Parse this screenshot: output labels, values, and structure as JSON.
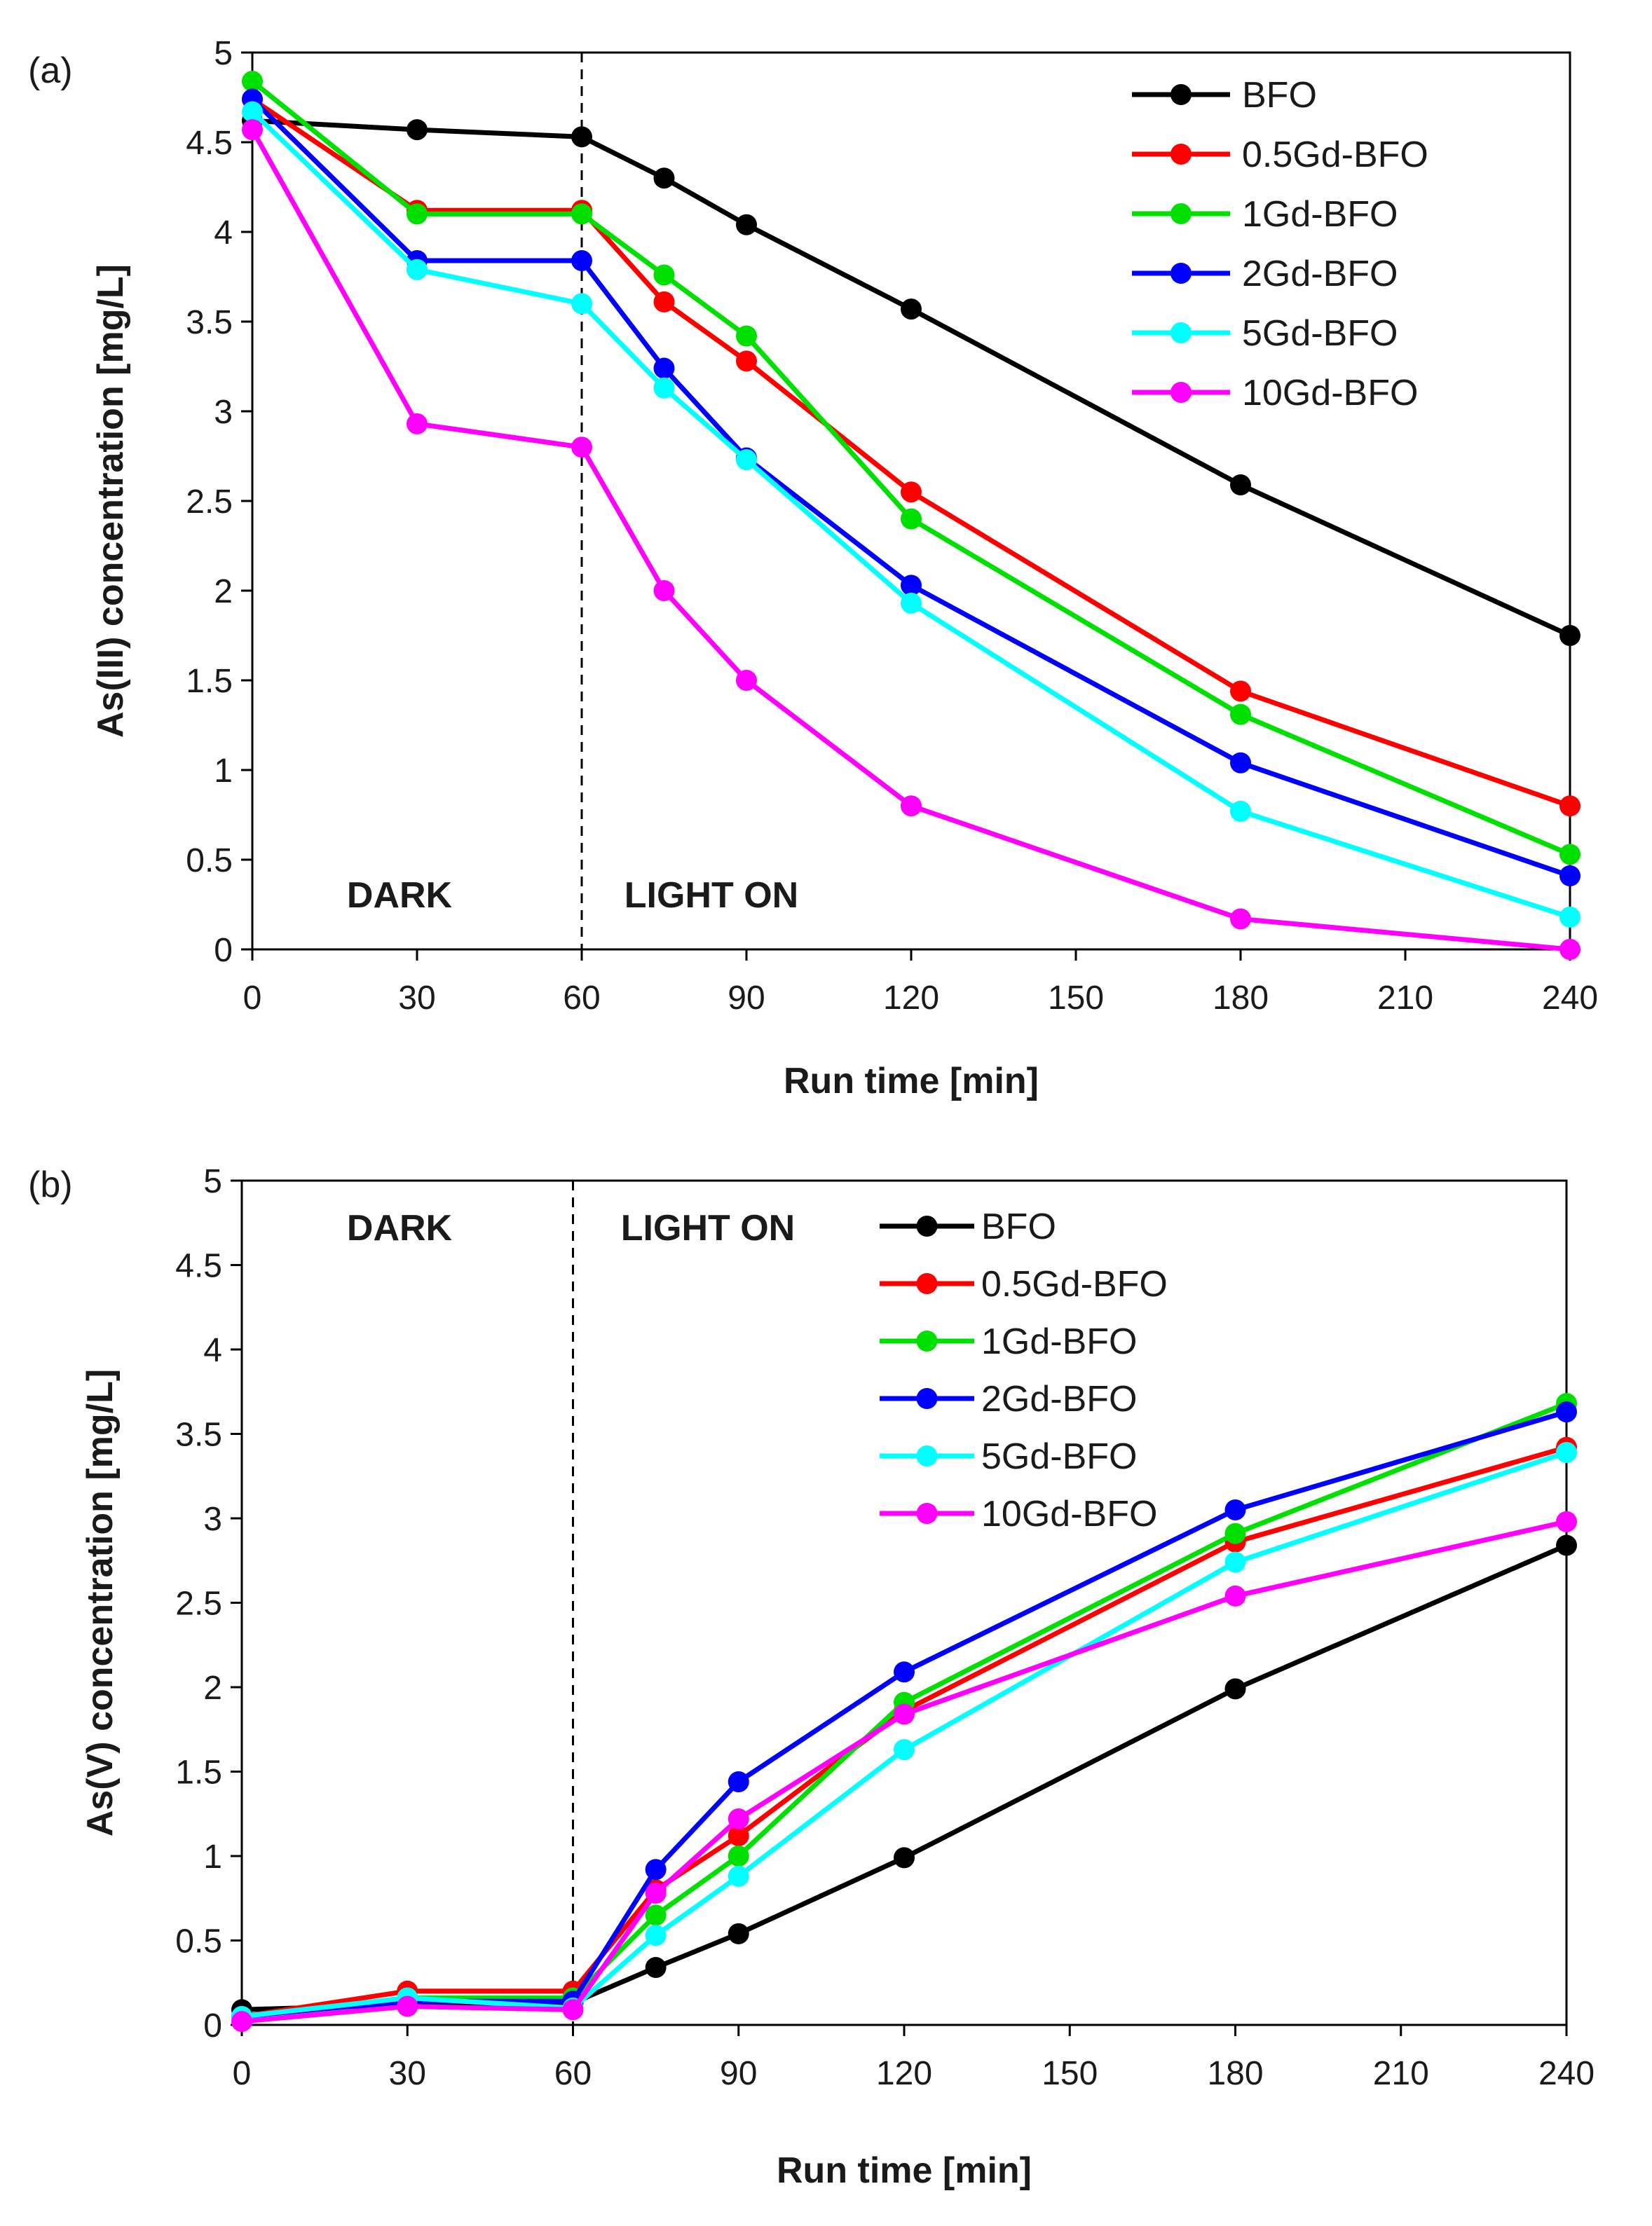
{
  "chart_data": [
    {
      "type": "line",
      "panel_label": "(a)",
      "xlabel": "Run time [min]",
      "ylabel": "As(III) concentration [mg/L]",
      "xlim": [
        0,
        240
      ],
      "ylim": [
        0,
        5
      ],
      "xticks": [
        0,
        30,
        60,
        90,
        120,
        150,
        180,
        210,
        240
      ],
      "yticks": [
        0,
        0.5,
        1,
        1.5,
        2,
        2.5,
        3,
        3.5,
        4,
        4.5,
        5
      ],
      "ytick_labels": [
        "0",
        "0.5",
        "1",
        "1.5",
        "2",
        "2.5",
        "3",
        "3.5",
        "4",
        "4.5",
        "5"
      ],
      "divider_x": 60,
      "dark_label": "DARK",
      "light_label": "LIGHT ON",
      "legend_position": "top-right",
      "x": [
        0,
        30,
        60,
        75,
        90,
        120,
        180,
        240
      ],
      "series": [
        {
          "name": "BFO",
          "color": "#000000",
          "values": [
            4.62,
            4.57,
            4.53,
            4.3,
            4.04,
            3.57,
            2.59,
            1.75
          ]
        },
        {
          "name": "0.5Gd-BFO",
          "color": "#ff0000",
          "values": [
            4.74,
            4.12,
            4.12,
            3.61,
            3.28,
            2.55,
            1.44,
            0.8
          ]
        },
        {
          "name": "1Gd-BFO",
          "color": "#00e000",
          "values": [
            4.84,
            4.1,
            4.1,
            3.76,
            3.42,
            2.4,
            1.31,
            0.53
          ]
        },
        {
          "name": "2Gd-BFO",
          "color": "#0000ff",
          "values": [
            4.74,
            3.84,
            3.84,
            3.24,
            2.74,
            2.03,
            1.04,
            0.41
          ]
        },
        {
          "name": "5Gd-BFO",
          "color": "#00ffff",
          "values": [
            4.67,
            3.79,
            3.6,
            3.13,
            2.73,
            1.93,
            0.77,
            0.18
          ]
        },
        {
          "name": "10Gd-BFO",
          "color": "#ff00ff",
          "values": [
            4.57,
            2.93,
            2.8,
            2.0,
            1.5,
            0.8,
            0.17,
            0.0
          ]
        }
      ]
    },
    {
      "type": "line",
      "panel_label": "(b)",
      "xlabel": "Run time [min]",
      "ylabel": "As(V) concentration [mg/L]",
      "xlim": [
        0,
        240
      ],
      "ylim": [
        0,
        5
      ],
      "xticks": [
        0,
        30,
        60,
        90,
        120,
        150,
        180,
        210,
        240
      ],
      "yticks": [
        0,
        0.5,
        1,
        1.5,
        2,
        2.5,
        3,
        3.5,
        4,
        4.5,
        5
      ],
      "ytick_labels": [
        "0",
        "0.5",
        "1",
        "1.5",
        "2",
        "2.5",
        "3",
        "3.5",
        "4",
        "4.5",
        "5"
      ],
      "divider_x": 60,
      "dark_label": "DARK",
      "light_label": "LIGHT ON",
      "legend_position": "top-center",
      "x": [
        0,
        30,
        60,
        75,
        90,
        120,
        180,
        240
      ],
      "series": [
        {
          "name": "BFO",
          "color": "#000000",
          "values": [
            0.09,
            0.12,
            0.13,
            0.34,
            0.54,
            0.99,
            1.99,
            2.84
          ]
        },
        {
          "name": "0.5Gd-BFO",
          "color": "#ff0000",
          "values": [
            0.05,
            0.2,
            0.2,
            0.8,
            1.12,
            1.86,
            2.86,
            3.42
          ]
        },
        {
          "name": "1Gd-BFO",
          "color": "#00e000",
          "values": [
            0.05,
            0.16,
            0.16,
            0.65,
            1.0,
            1.91,
            2.91,
            3.68
          ]
        },
        {
          "name": "2Gd-BFO",
          "color": "#0000ff",
          "values": [
            0.05,
            0.14,
            0.14,
            0.92,
            1.44,
            2.09,
            3.05,
            3.63
          ]
        },
        {
          "name": "5Gd-BFO",
          "color": "#00ffff",
          "values": [
            0.05,
            0.16,
            0.1,
            0.53,
            0.88,
            1.63,
            2.74,
            3.39
          ]
        },
        {
          "name": "10Gd-BFO",
          "color": "#ff00ff",
          "values": [
            0.02,
            0.11,
            0.09,
            0.78,
            1.22,
            1.84,
            2.54,
            2.98
          ]
        }
      ]
    }
  ]
}
